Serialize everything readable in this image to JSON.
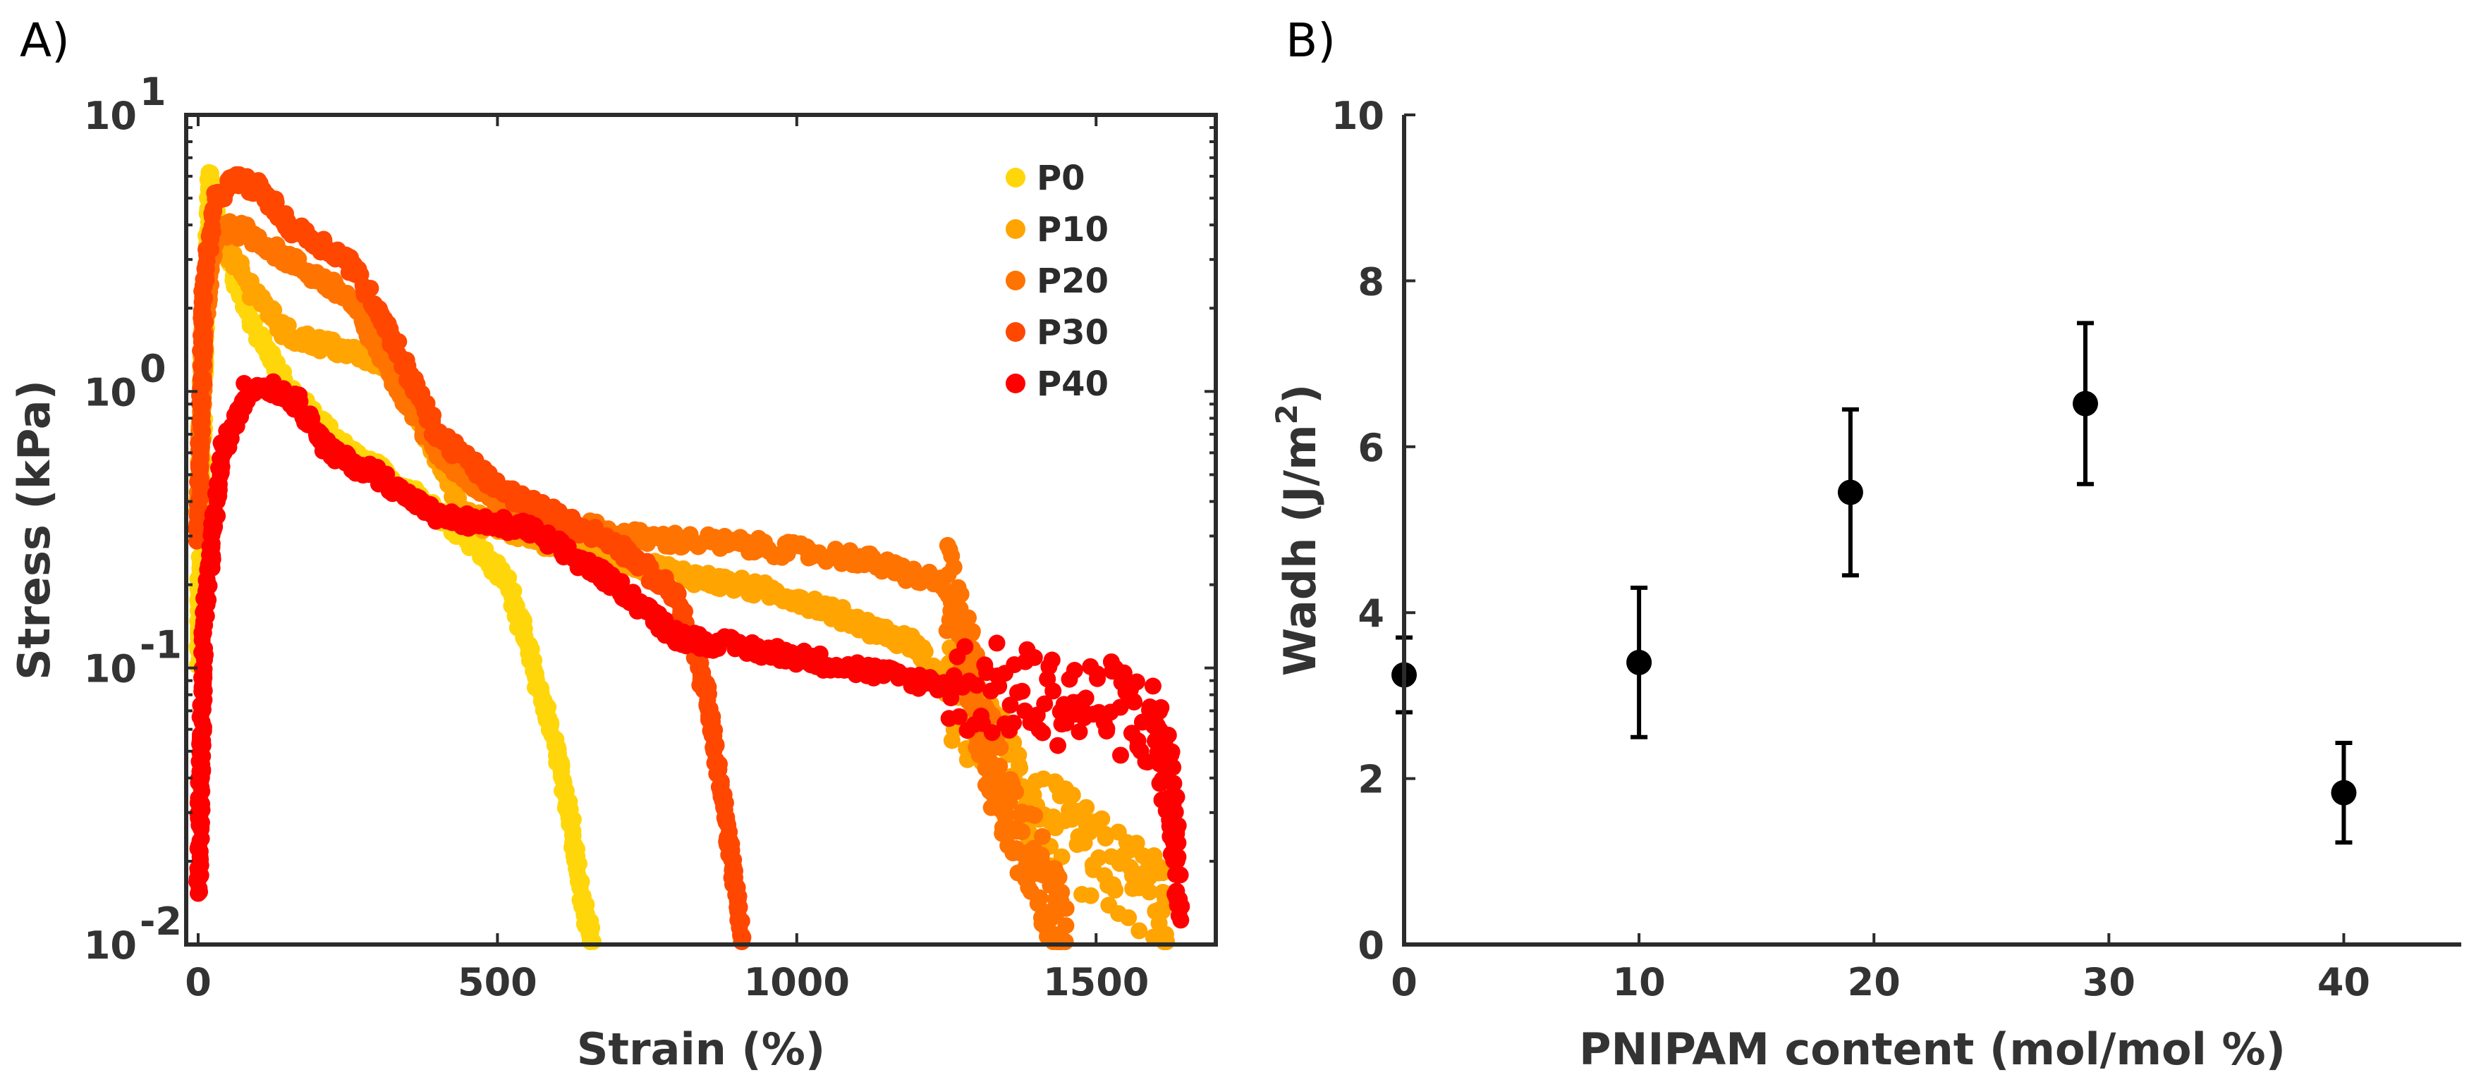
{
  "panel_labels": {
    "a": "A)",
    "b": "B)"
  },
  "chart_data": [
    {
      "type": "scatter",
      "title": "",
      "xlabel": "Strain (%)",
      "ylabel": "Stress (kPa)",
      "xscale": "linear",
      "yscale": "log",
      "xlim": [
        -20,
        1700
      ],
      "ylim": [
        0.01,
        10
      ],
      "xticks": [
        0,
        500,
        1000,
        1500
      ],
      "xtick_labels": [
        "0",
        "500",
        "1000",
        "1500"
      ],
      "yticks": [
        0.01,
        0.1,
        1,
        10
      ],
      "ytick_labels": [
        {
          "base": "10",
          "exp": "-2"
        },
        {
          "base": "10",
          "exp": "-1"
        },
        {
          "base": "10",
          "exp": "0"
        },
        {
          "base": "10",
          "exp": "1"
        }
      ],
      "legend_position": "top-right",
      "series": [
        {
          "name": "P0",
          "color": "#FFD60A",
          "x": [
            0,
            10,
            20,
            40,
            80,
            150,
            250,
            350,
            450,
            520,
            560,
            600,
            620,
            640,
            660
          ],
          "y": [
            0.1,
            1.5,
            6.2,
            3.5,
            2.0,
            1.0,
            0.6,
            0.45,
            0.3,
            0.2,
            0.1,
            0.05,
            0.03,
            0.015,
            0.01
          ]
        },
        {
          "name": "P10",
          "color": "#FFA400",
          "x": [
            0,
            10,
            30,
            80,
            150,
            250,
            330,
            380,
            450,
            600,
            800,
            1000,
            1200,
            1300,
            1400,
            1500,
            1600,
            1620
          ],
          "y": [
            0.3,
            2.0,
            3.8,
            2.5,
            1.6,
            1.4,
            1.2,
            0.7,
            0.35,
            0.28,
            0.22,
            0.18,
            0.12,
            0.06,
            0.03,
            0.02,
            0.015,
            0.01
          ]
        },
        {
          "name": "P20",
          "color": "#FF7300",
          "x": [
            0,
            10,
            30,
            80,
            150,
            250,
            320,
            400,
            500,
            700,
            900,
            1100,
            1250,
            1290,
            1330,
            1400,
            1450
          ],
          "y": [
            0.3,
            1.8,
            3.9,
            3.8,
            3.0,
            2.2,
            1.2,
            0.6,
            0.4,
            0.3,
            0.28,
            0.25,
            0.2,
            0.1,
            0.04,
            0.02,
            0.01
          ]
        },
        {
          "name": "P30",
          "color": "#FF4700",
          "x": [
            0,
            10,
            30,
            60,
            100,
            150,
            250,
            300,
            400,
            500,
            600,
            700,
            800,
            850,
            880,
            900,
            910
          ],
          "y": [
            0.3,
            2.5,
            5.0,
            5.8,
            5.5,
            4.0,
            3.0,
            2.0,
            0.7,
            0.45,
            0.35,
            0.28,
            0.18,
            0.08,
            0.03,
            0.015,
            0.01
          ]
        },
        {
          "name": "P40",
          "color": "#FF0000",
          "x": [
            0,
            10,
            40,
            80,
            120,
            170,
            220,
            300,
            400,
            550,
            700,
            800,
            1000,
            1200,
            1400,
            1550,
            1600,
            1630,
            1640
          ],
          "y": [
            0.015,
            0.15,
            0.6,
            1.0,
            1.05,
            0.9,
            0.6,
            0.5,
            0.35,
            0.32,
            0.2,
            0.13,
            0.11,
            0.09,
            0.08,
            0.07,
            0.06,
            0.03,
            0.015
          ]
        }
      ]
    },
    {
      "type": "scatter",
      "title": "",
      "xlabel": "PNIPAM content (mol/mol %)",
      "ylabel": "Wadh (J/m",
      "ylabel_superscript": "2",
      "ylabel_suffix": ")",
      "xlim": [
        0,
        45
      ],
      "ylim": [
        0,
        10
      ],
      "xticks": [
        0,
        10,
        20,
        30,
        40
      ],
      "xtick_labels": [
        "0",
        "10",
        "20",
        "30",
        "40"
      ],
      "yticks": [
        0,
        2,
        4,
        6,
        8,
        10
      ],
      "ytick_labels": [
        "0",
        "2",
        "4",
        "6",
        "8",
        "10"
      ],
      "marker_color": "#000000",
      "points": [
        {
          "x": 0,
          "y": 3.25,
          "err": 0.45
        },
        {
          "x": 10,
          "y": 3.4,
          "err": 0.9
        },
        {
          "x": 19,
          "y": 5.45,
          "err": 1.0
        },
        {
          "x": 29,
          "y": 6.52,
          "err": 0.97
        },
        {
          "x": 40,
          "y": 1.83,
          "err": 0.6
        }
      ]
    }
  ]
}
